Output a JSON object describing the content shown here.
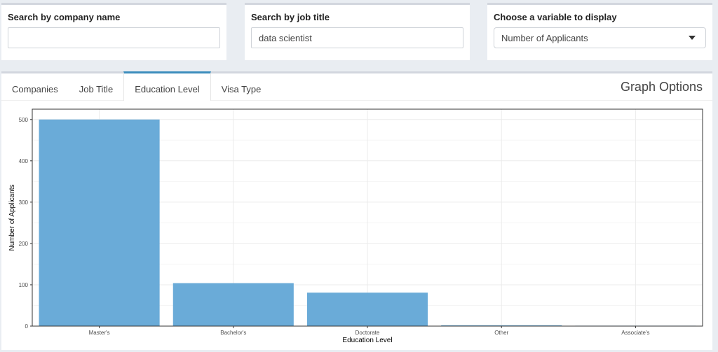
{
  "filters": {
    "company": {
      "label": "Search by company name",
      "value": "",
      "placeholder": ""
    },
    "job_title": {
      "label": "Search by job title",
      "value": "data scientist"
    },
    "variable": {
      "label": "Choose a variable to display",
      "selected": "Number of Applicants"
    }
  },
  "tabs": [
    {
      "label": "Companies",
      "active": false
    },
    {
      "label": "Job Title",
      "active": false
    },
    {
      "label": "Education Level",
      "active": true
    },
    {
      "label": "Visa Type",
      "active": false
    }
  ],
  "graph_options_label": "Graph Options",
  "colors": {
    "bar": "#6aabd8",
    "accent": "#3c8dbc"
  },
  "chart_data": {
    "type": "bar",
    "categories": [
      "Master's",
      "Bachelor's",
      "Doctorate",
      "Other",
      "Associate's"
    ],
    "values": [
      500,
      104,
      81,
      2,
      1
    ],
    "xlabel": "Education Level",
    "ylabel": "Number of Applicants",
    "ylim": [
      0,
      525
    ],
    "yticks": [
      0,
      100,
      200,
      300,
      400,
      500
    ],
    "grid": true
  }
}
